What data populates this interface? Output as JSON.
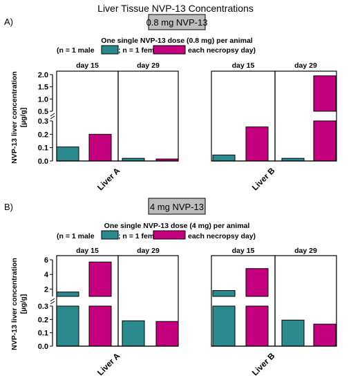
{
  "title": "Liver Tissue NVP-13 Concentrations",
  "colors": {
    "male": "#2a8a8e",
    "female": "#c5007f",
    "gray": "#bdbdbd",
    "axis": "#000000"
  },
  "chart_data": [
    {
      "panel_label": "A)",
      "dose_label": "0.8 mg NVP-13",
      "legend_line1": "One single NVP-13 dose (0.8 mg) per animal",
      "legend_line2_part1": "(n = 1 male",
      "legend_line2_part2": "; n = 1 female",
      "legend_line2_part3": "each necropsy day)",
      "ylabel": "NVP-13 liver concentration",
      "yunit": "[µg/g]",
      "type": "bar",
      "y_broken_axis": {
        "lower": {
          "range": [
            0,
            0.3
          ],
          "ticks": [
            "0.0",
            "0.1",
            "0.2",
            "0.3"
          ]
        },
        "upper": {
          "range": [
            0.5,
            2.0
          ],
          "ticks": [
            "0.5",
            "1.0",
            "1.5",
            "2.0"
          ]
        }
      },
      "groups": [
        {
          "name": "Liver A",
          "days": [
            {
              "day": "day 15",
              "male": 0.105,
              "female": 0.2
            },
            {
              "day": "day 29",
              "male": 0.02,
              "female": 0.015
            }
          ]
        },
        {
          "name": "Liver B",
          "days": [
            {
              "day": "day 15",
              "male": 0.045,
              "female": 0.255
            },
            {
              "day": "day 29",
              "male": 0.02,
              "female": 1.95
            }
          ]
        }
      ]
    },
    {
      "panel_label": "B)",
      "dose_label": "4 mg NVP-13",
      "legend_line1": "One single NVP-13 dose (4 mg) per animal",
      "legend_line2_part1": "(n = 1 male",
      "legend_line2_part2": "; n = 1 female",
      "legend_line2_part3": "each necropsy day)",
      "ylabel": "NVP-13 liver concentration",
      "yunit": "[µg/g]",
      "type": "bar",
      "y_broken_axis": {
        "lower": {
          "range": [
            0,
            0.3
          ],
          "ticks": [
            "0.0",
            "0.1",
            "0.2",
            "0.3"
          ]
        },
        "upper": {
          "range": [
            1,
            6
          ],
          "ticks": [
            "2",
            "4",
            "6"
          ]
        }
      },
      "groups": [
        {
          "name": "Liver A",
          "days": [
            {
              "day": "day 15",
              "male": 1.6,
              "female": 5.7
            },
            {
              "day": "day 29",
              "male": 0.19,
              "female": 0.185
            }
          ]
        },
        {
          "name": "Liver B",
          "days": [
            {
              "day": "day 15",
              "male": 1.8,
              "female": 4.8
            },
            {
              "day": "day 29",
              "male": 0.195,
              "female": 0.165
            }
          ]
        }
      ]
    }
  ]
}
